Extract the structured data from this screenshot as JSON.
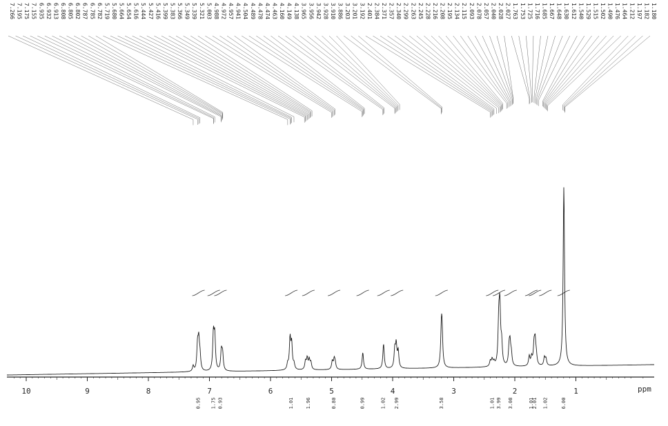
{
  "chart_data": {
    "type": "line",
    "title": "",
    "xlabel": "ppm",
    "ylabel": "",
    "xlim": [
      10.3,
      -0.2
    ],
    "x_reversed": true,
    "grid": false,
    "x_ticks": [
      {
        "value": 10,
        "label": "10"
      },
      {
        "value": 9,
        "label": "9"
      },
      {
        "value": 8,
        "label": "8"
      },
      {
        "value": 7,
        "label": "7"
      },
      {
        "value": 6,
        "label": "6"
      },
      {
        "value": 5,
        "label": "5"
      },
      {
        "value": 4,
        "label": "4"
      },
      {
        "value": 3,
        "label": "3"
      },
      {
        "value": 2,
        "label": "2"
      },
      {
        "value": 1,
        "label": "1"
      }
    ],
    "peak_labels": [
      "7.266",
      "7.195",
      "7.175",
      "7.155",
      "6.935",
      "6.932",
      "6.913",
      "6.808",
      "6.805",
      "6.802",
      "6.787",
      "6.785",
      "6.782",
      "5.719",
      "5.680",
      "5.664",
      "5.654",
      "5.616",
      "5.444",
      "5.427",
      "5.416",
      "5.399",
      "5.383",
      "5.366",
      "5.349",
      "5.339",
      "5.321",
      "5.003",
      "4.988",
      "4.972",
      "4.957",
      "4.941",
      "4.504",
      "4.489",
      "4.478",
      "4.474",
      "4.463",
      "4.160",
      "4.149",
      "4.138",
      "3.965",
      "3.956",
      "3.942",
      "3.928",
      "3.910",
      "3.886",
      "3.203",
      "3.201",
      "3.192",
      "2.401",
      "2.384",
      "2.371",
      "2.357",
      "2.340",
      "2.299",
      "2.263",
      "2.245",
      "2.228",
      "2.216",
      "2.208",
      "2.195",
      "2.134",
      "2.115",
      "2.093",
      "2.078",
      "2.057",
      "2.040",
      "2.028",
      "2.027",
      "1.763",
      "1.753",
      "1.725",
      "1.716",
      "1.685",
      "1.667",
      "1.648",
      "1.630",
      "1.612",
      "1.540",
      "1.529",
      "1.515",
      "1.502",
      "1.490",
      "1.476",
      "1.464",
      "1.212",
      "1.197",
      "1.182",
      "1.180"
    ],
    "peaks": [
      {
        "ppm": 7.266,
        "height": 0.04
      },
      {
        "ppm": 7.195,
        "height": 0.18
      },
      {
        "ppm": 7.175,
        "height": 0.2
      },
      {
        "ppm": 7.155,
        "height": 0.1
      },
      {
        "ppm": 6.935,
        "height": 0.26
      },
      {
        "ppm": 6.913,
        "height": 0.24
      },
      {
        "ppm": 6.805,
        "height": 0.14
      },
      {
        "ppm": 6.785,
        "height": 0.12
      },
      {
        "ppm": 5.719,
        "height": 0.04
      },
      {
        "ppm": 5.68,
        "height": 0.22
      },
      {
        "ppm": 5.654,
        "height": 0.18
      },
      {
        "ppm": 5.616,
        "height": 0.04
      },
      {
        "ppm": 5.427,
        "height": 0.06
      },
      {
        "ppm": 5.399,
        "height": 0.08
      },
      {
        "ppm": 5.366,
        "height": 0.07
      },
      {
        "ppm": 5.339,
        "height": 0.05
      },
      {
        "ppm": 4.988,
        "height": 0.06
      },
      {
        "ppm": 4.957,
        "height": 0.07
      },
      {
        "ppm": 4.941,
        "height": 0.04
      },
      {
        "ppm": 4.489,
        "height": 0.12
      },
      {
        "ppm": 4.149,
        "height": 0.18
      },
      {
        "ppm": 3.965,
        "height": 0.13
      },
      {
        "ppm": 3.942,
        "height": 0.16
      },
      {
        "ppm": 3.91,
        "height": 0.12
      },
      {
        "ppm": 3.203,
        "height": 0.22
      },
      {
        "ppm": 3.192,
        "height": 0.24
      },
      {
        "ppm": 2.401,
        "height": 0.04
      },
      {
        "ppm": 2.371,
        "height": 0.05
      },
      {
        "ppm": 2.34,
        "height": 0.03
      },
      {
        "ppm": 2.263,
        "height": 0.3
      },
      {
        "ppm": 2.245,
        "height": 0.4
      },
      {
        "ppm": 2.216,
        "height": 0.15
      },
      {
        "ppm": 2.093,
        "height": 0.12
      },
      {
        "ppm": 2.078,
        "height": 0.14
      },
      {
        "ppm": 2.057,
        "height": 0.08
      },
      {
        "ppm": 1.763,
        "height": 0.07
      },
      {
        "ppm": 1.725,
        "height": 0.06
      },
      {
        "ppm": 1.685,
        "height": 0.14
      },
      {
        "ppm": 1.667,
        "height": 0.16
      },
      {
        "ppm": 1.648,
        "height": 0.06
      },
      {
        "ppm": 1.515,
        "height": 0.06
      },
      {
        "ppm": 1.49,
        "height": 0.05
      },
      {
        "ppm": 1.197,
        "height": 1.3
      }
    ],
    "integrals": [
      {
        "ppm": 7.18,
        "value": "0.95"
      },
      {
        "ppm": 6.93,
        "value": "1.75"
      },
      {
        "ppm": 6.82,
        "value": "0.93"
      },
      {
        "ppm": 5.66,
        "value": "1.01"
      },
      {
        "ppm": 5.38,
        "value": "1.96"
      },
      {
        "ppm": 4.96,
        "value": "0.80"
      },
      {
        "ppm": 4.49,
        "value": "0.99"
      },
      {
        "ppm": 4.15,
        "value": "1.02"
      },
      {
        "ppm": 3.93,
        "value": "2.99"
      },
      {
        "ppm": 3.2,
        "value": "3.58"
      },
      {
        "ppm": 2.37,
        "value": "1.01"
      },
      {
        "ppm": 2.26,
        "value": "3.99"
      },
      {
        "ppm": 2.07,
        "value": "3.08"
      },
      {
        "ppm": 1.73,
        "value": "1.01"
      },
      {
        "ppm": 1.67,
        "value": "2.01"
      },
      {
        "ppm": 1.5,
        "value": "1.02"
      },
      {
        "ppm": 1.2,
        "value": "6.00"
      }
    ]
  }
}
